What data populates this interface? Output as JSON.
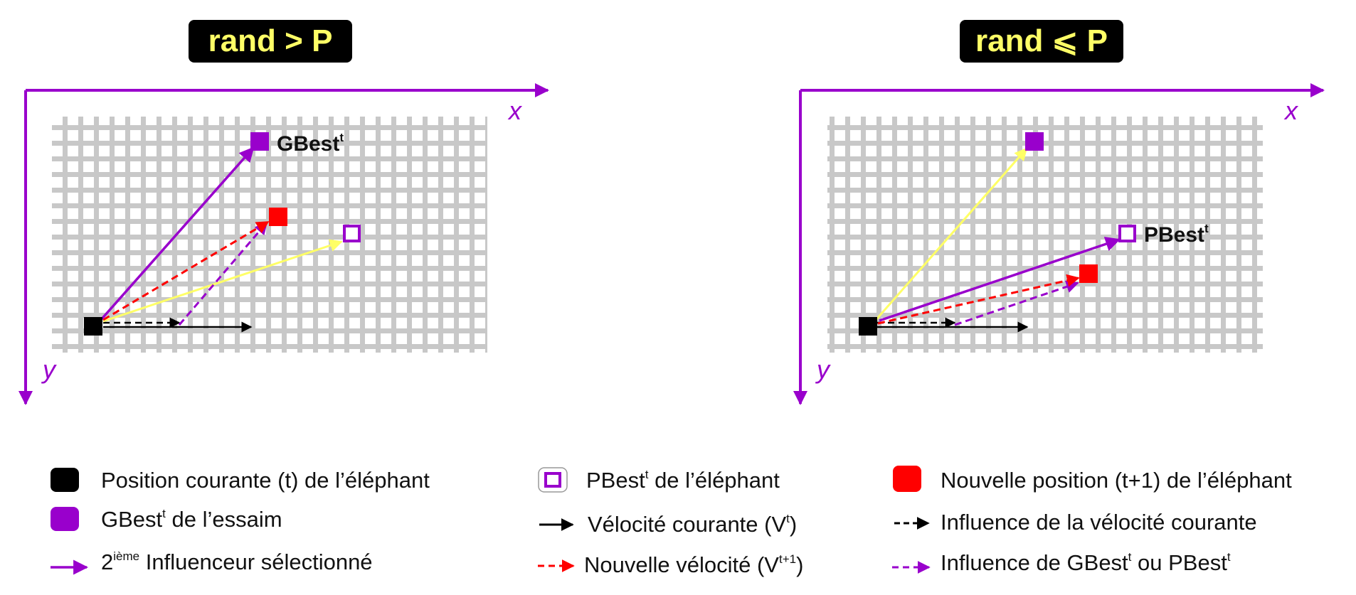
{
  "panels": [
    {
      "title": "rand > P",
      "x_label": "x",
      "y_label": "y",
      "point_label": "GBest",
      "point_label_sup": "t"
    },
    {
      "title": "rand ⩽ P",
      "x_label": "x",
      "y_label": "y",
      "point_label": "PBest",
      "point_label_sup": "t"
    }
  ],
  "legend": {
    "current_position": "Position courante (t) de l’éléphant",
    "gbest_pre": "GBest",
    "gbest_sup": "t",
    "gbest_post": " de l’essaim",
    "second_influencer_pre": "2",
    "second_influencer_sup": "ième",
    "second_influencer_post": " Influenceur sélectionné",
    "pbest_pre": "PBest",
    "pbest_sup": "t",
    "pbest_post": " de l’éléphant",
    "current_velocity_pre": "Vélocité courante (V",
    "current_velocity_sup": "t",
    "current_velocity_post": ")",
    "new_velocity_pre": "Nouvelle vélocité (V",
    "new_velocity_sup": "t+1",
    "new_velocity_post": ")",
    "new_position": "Nouvelle position (t+1) de l’éléphant",
    "influence_current": "Influence de la vélocité courante",
    "influence_best_pre": "Influence de GBest",
    "influence_best_sup": "t",
    "influence_best_mid": " ou PBest",
    "influence_best_sup2": "t"
  },
  "colors": {
    "axis": "#9900cc",
    "grid": "#c8c8c8",
    "title_bg": "#000000",
    "title_text": "#ffff66",
    "current": "#000000",
    "gbest": "#9900cc",
    "pbest_border": "#9900cc",
    "new_position": "#ff0000",
    "yellow_arrow": "#ffff66",
    "new_velocity": "#ff0000",
    "influence_best": "#9900cc"
  },
  "icons": [
    "black-square-icon",
    "purple-square-icon",
    "hollow-purple-square-icon",
    "red-square-icon",
    "arrow-icon",
    "dashed-arrow-icon"
  ]
}
